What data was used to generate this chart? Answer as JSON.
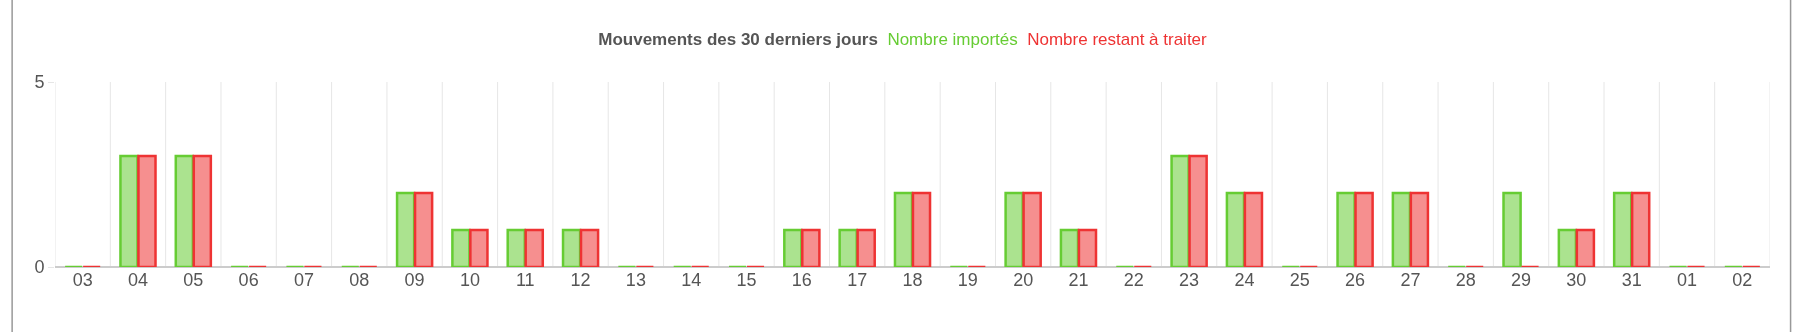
{
  "chart_data": {
    "type": "bar",
    "title": "Mouvements des 30 derniers jours",
    "categories": [
      "03",
      "04",
      "05",
      "06",
      "07",
      "08",
      "09",
      "10",
      "11",
      "12",
      "13",
      "14",
      "15",
      "16",
      "17",
      "18",
      "19",
      "20",
      "21",
      "22",
      "23",
      "24",
      "25",
      "26",
      "27",
      "28",
      "29",
      "30",
      "31",
      "01",
      "02"
    ],
    "series": [
      {
        "name": "Nombre importés",
        "color": "#66cc33",
        "values": [
          0,
          3,
          3,
          0,
          0,
          0,
          2,
          1,
          1,
          1,
          0,
          0,
          0,
          1,
          1,
          2,
          0,
          2,
          1,
          0,
          3,
          2,
          0,
          2,
          2,
          0,
          2,
          1,
          2,
          0,
          0
        ]
      },
      {
        "name": "Nombre restant à traiter",
        "color": "#ee3333",
        "values": [
          0,
          3,
          3,
          0,
          0,
          0,
          2,
          1,
          1,
          1,
          0,
          0,
          0,
          1,
          1,
          2,
          0,
          2,
          1,
          0,
          3,
          2,
          0,
          2,
          2,
          0,
          0,
          1,
          2,
          0,
          0
        ]
      }
    ],
    "ylim": [
      0,
      5
    ],
    "yticks": [
      0,
      5
    ],
    "grid": true,
    "legend": "top"
  }
}
